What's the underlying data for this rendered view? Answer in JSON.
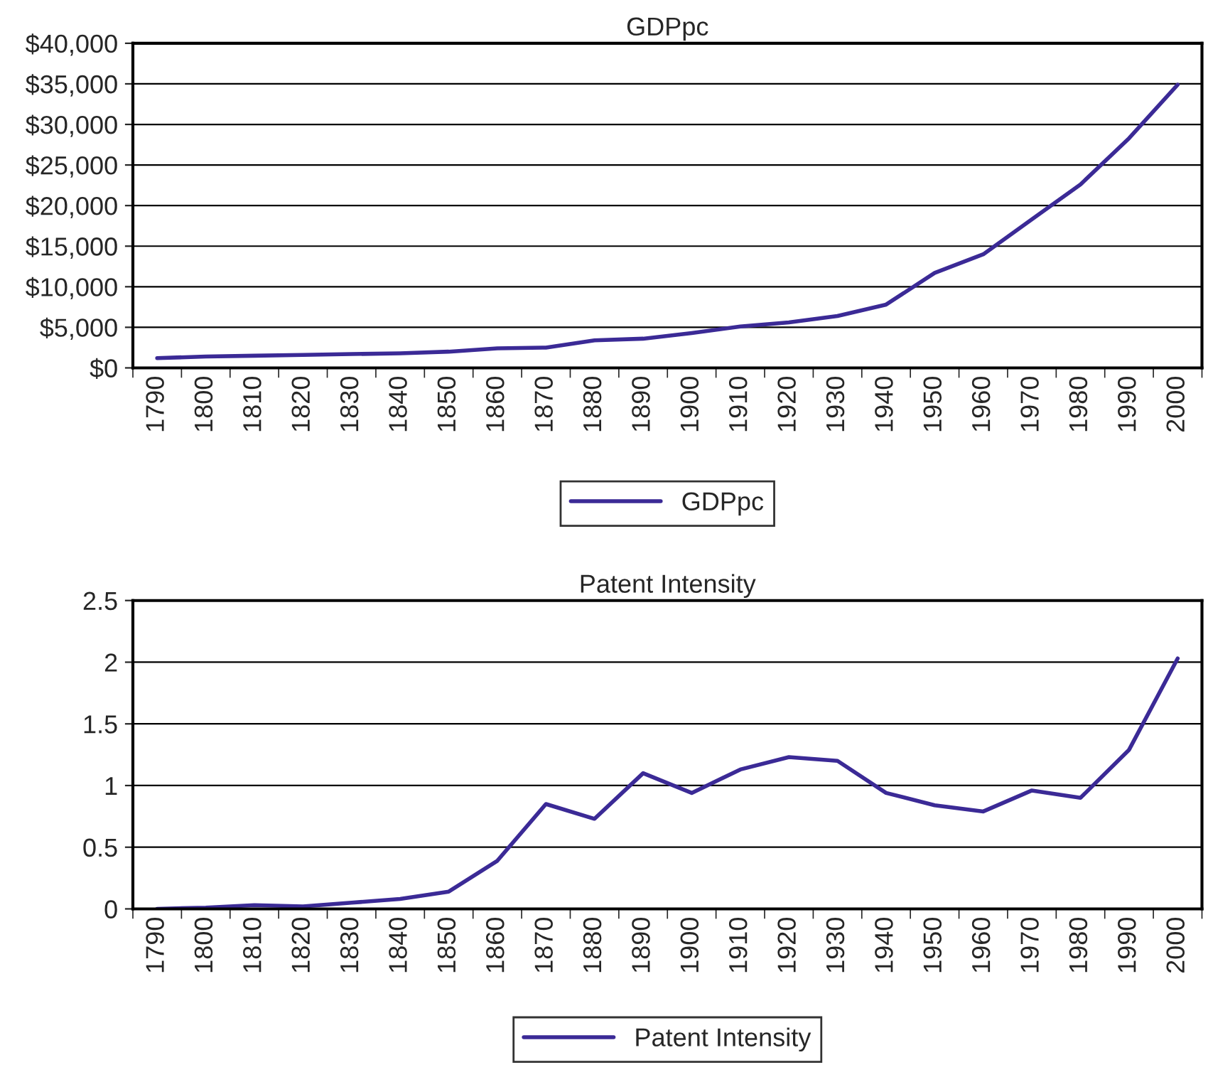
{
  "chart_data": [
    {
      "type": "line",
      "title": "GDPpc",
      "categories": [
        "1790",
        "1800",
        "1810",
        "1820",
        "1830",
        "1840",
        "1850",
        "1860",
        "1870",
        "1880",
        "1890",
        "1900",
        "1910",
        "1920",
        "1930",
        "1940",
        "1950",
        "1960",
        "1970",
        "1980",
        "1990",
        "2000"
      ],
      "series": [
        {
          "name": "GDPpc",
          "color": "#3b2a96",
          "values": [
            1200,
            1400,
            1500,
            1600,
            1700,
            1800,
            2000,
            2400,
            2500,
            3400,
            3600,
            4300,
            5100,
            5600,
            6400,
            7800,
            11700,
            14000,
            18300,
            22600,
            28300,
            34900
          ]
        }
      ],
      "ylim": [
        0,
        40000
      ],
      "yticks": [
        {
          "value": 0,
          "label": "$0"
        },
        {
          "value": 5000,
          "label": "$5,000"
        },
        {
          "value": 10000,
          "label": "$10,000"
        },
        {
          "value": 15000,
          "label": "$15,000"
        },
        {
          "value": 20000,
          "label": "$20,000"
        },
        {
          "value": 25000,
          "label": "$25,000"
        },
        {
          "value": 30000,
          "label": "$30,000"
        },
        {
          "value": 35000,
          "label": "$35,000"
        },
        {
          "value": 40000,
          "label": "$40,000"
        }
      ],
      "grid": "y",
      "legend": "bottom",
      "marker": "none",
      "line_style": "solid"
    },
    {
      "type": "line",
      "title": "Patent Intensity",
      "categories": [
        "1790",
        "1800",
        "1810",
        "1820",
        "1830",
        "1840",
        "1850",
        "1860",
        "1870",
        "1880",
        "1890",
        "1900",
        "1910",
        "1920",
        "1930",
        "1940",
        "1950",
        "1960",
        "1970",
        "1980",
        "1990",
        "2000"
      ],
      "series": [
        {
          "name": "Patent Intensity",
          "color": "#3b2a96",
          "values": [
            0,
            0.01,
            0.03,
            0.02,
            0.05,
            0.08,
            0.14,
            0.39,
            0.85,
            0.73,
            1.1,
            0.94,
            1.13,
            1.23,
            1.2,
            0.94,
            0.84,
            0.79,
            0.96,
            0.9,
            1.29,
            2.03
          ]
        }
      ],
      "ylim": [
        0,
        2.5
      ],
      "yticks": [
        {
          "value": 0,
          "label": "0"
        },
        {
          "value": 0.5,
          "label": "0.5"
        },
        {
          "value": 1,
          "label": "1"
        },
        {
          "value": 1.5,
          "label": "1.5"
        },
        {
          "value": 2,
          "label": "2"
        },
        {
          "value": 2.5,
          "label": "2.5"
        }
      ],
      "grid": "y",
      "legend": "bottom",
      "marker": "none",
      "line_style": "solid"
    }
  ]
}
